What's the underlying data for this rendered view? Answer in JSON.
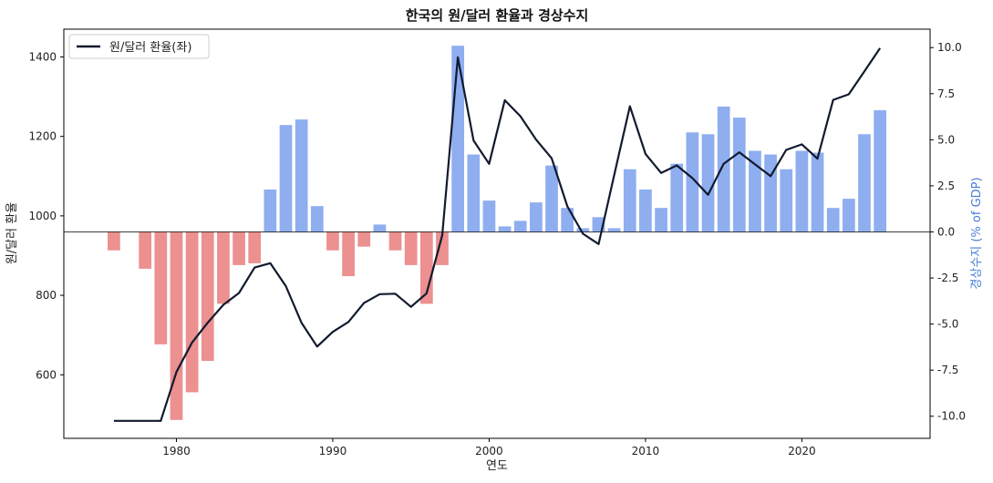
{
  "chart_data": {
    "type": "bar+line",
    "title": "한국의 원/달러 환율과 경상수지",
    "xlabel": "연도",
    "ylabel_left": "원/달러 환율",
    "ylabel_right": "경상수지 (% of GDP)",
    "xlim": [
      1972.8,
      2028.2
    ],
    "ylim_left": [
      440,
      1470
    ],
    "ylim_right": [
      -11.2,
      11.0
    ],
    "x_ticks": [
      1980,
      1990,
      2000,
      2010,
      2020
    ],
    "y_left_ticks": [
      600,
      800,
      1000,
      1200,
      1400
    ],
    "y_right_ticks": [
      -10.0,
      -7.5,
      -5.0,
      -2.5,
      0.0,
      2.5,
      5.0,
      7.5,
      10.0
    ],
    "grid": false,
    "legend_position": "top-left",
    "colors": {
      "line": "#111a2e",
      "bar_positive": "#8eaef0",
      "bar_negative": "#ec9090",
      "right_axis_label": "#4a7fd4",
      "zero_line": "#000000"
    },
    "series": [
      {
        "name": "원/달러 환율(좌)",
        "kind": "line",
        "axis": "left",
        "x": [
          1976,
          1977,
          1978,
          1979,
          1980,
          1981,
          1982,
          1983,
          1984,
          1985,
          1986,
          1987,
          1988,
          1989,
          1990,
          1991,
          1992,
          1993,
          1994,
          1995,
          1996,
          1997,
          1998,
          1999,
          2000,
          2001,
          2002,
          2003,
          2004,
          2005,
          2006,
          2007,
          2008,
          2009,
          2010,
          2011,
          2012,
          2013,
          2014,
          2015,
          2016,
          2017,
          2018,
          2019,
          2020,
          2021,
          2022,
          2023,
          2024,
          2025
        ],
        "values": [
          484,
          484,
          484,
          484,
          607,
          681,
          731,
          776,
          806,
          870,
          881,
          823,
          731,
          671,
          708,
          733,
          781,
          803,
          804,
          771,
          805,
          951,
          1399,
          1190,
          1131,
          1291,
          1251,
          1192,
          1145,
          1024,
          955,
          929,
          1103,
          1276,
          1156,
          1108,
          1127,
          1095,
          1053,
          1131,
          1160,
          1130,
          1100,
          1166,
          1180,
          1144,
          1292,
          1306,
          1364,
          1422
        ]
      },
      {
        "name": "경상수지",
        "kind": "bar",
        "axis": "right",
        "x": [
          1976,
          1977,
          1978,
          1979,
          1980,
          1981,
          1982,
          1983,
          1984,
          1985,
          1986,
          1987,
          1988,
          1989,
          1990,
          1991,
          1992,
          1993,
          1994,
          1995,
          1996,
          1997,
          1998,
          1999,
          2000,
          2001,
          2002,
          2003,
          2004,
          2005,
          2006,
          2007,
          2008,
          2009,
          2010,
          2011,
          2012,
          2013,
          2014,
          2015,
          2016,
          2017,
          2018,
          2019,
          2020,
          2021,
          2022,
          2023,
          2024,
          2025
        ],
        "values": [
          -1.0,
          0.0,
          -2.0,
          -6.1,
          -10.2,
          -8.7,
          -7.0,
          -3.9,
          -1.8,
          -1.7,
          2.3,
          5.8,
          6.1,
          1.4,
          -1.0,
          -2.4,
          -0.8,
          0.4,
          -1.0,
          -1.8,
          -3.9,
          -1.8,
          10.1,
          4.2,
          1.7,
          0.3,
          0.6,
          1.6,
          3.6,
          1.3,
          0.2,
          0.8,
          0.2,
          3.4,
          2.3,
          1.3,
          3.7,
          5.4,
          5.3,
          6.8,
          6.2,
          4.4,
          4.2,
          3.4,
          4.4,
          4.3,
          1.3,
          1.8,
          5.3,
          6.6
        ]
      }
    ]
  }
}
